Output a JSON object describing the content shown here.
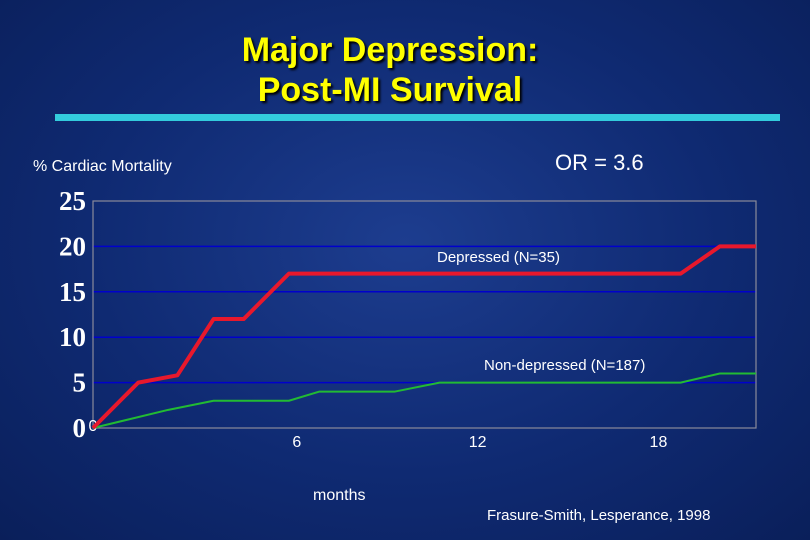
{
  "slide": {
    "title_line1": "Major Depression:",
    "title_line2": "Post-MI Survival",
    "odds_ratio": "OR = 3.6",
    "citation": "Frasure-Smith, Lesperance, 1998"
  },
  "colors": {
    "background": "#0f2a72",
    "title": "#ffff00",
    "title_bar": "#33ccdd",
    "gridline": "#0000cc",
    "depressed": "#e8182c",
    "non_depressed": "#22bb33"
  },
  "chart_data": {
    "type": "line",
    "ylabel": "% Cardiac Mortality",
    "xlabel": "months",
    "ylim": [
      0,
      25
    ],
    "xlim": [
      0,
      22
    ],
    "yticks": [
      "0",
      "5",
      "10",
      "15",
      "20",
      "25"
    ],
    "xticks": [
      {
        "value": 0,
        "label": "0"
      },
      {
        "value": 6,
        "label": "6"
      },
      {
        "value": 12,
        "label": "12"
      },
      {
        "value": 18,
        "label": "18"
      }
    ],
    "grid": "horizontal",
    "series": [
      {
        "name": "Depressed (N=35)",
        "color": "#e8182c",
        "points": [
          [
            0,
            0
          ],
          [
            1.5,
            5
          ],
          [
            2.8,
            5.8
          ],
          [
            4,
            12
          ],
          [
            5,
            12
          ],
          [
            6.5,
            17
          ],
          [
            19.5,
            17
          ],
          [
            20.8,
            20
          ],
          [
            22,
            20
          ]
        ]
      },
      {
        "name": "Non-depressed (N=187)",
        "color": "#22bb33",
        "points": [
          [
            0,
            0
          ],
          [
            2.5,
            2
          ],
          [
            4,
            3
          ],
          [
            6.5,
            3
          ],
          [
            7.5,
            4
          ],
          [
            10,
            4
          ],
          [
            11.5,
            5
          ],
          [
            19.5,
            5
          ],
          [
            20.8,
            6
          ],
          [
            22,
            6
          ]
        ]
      }
    ]
  }
}
